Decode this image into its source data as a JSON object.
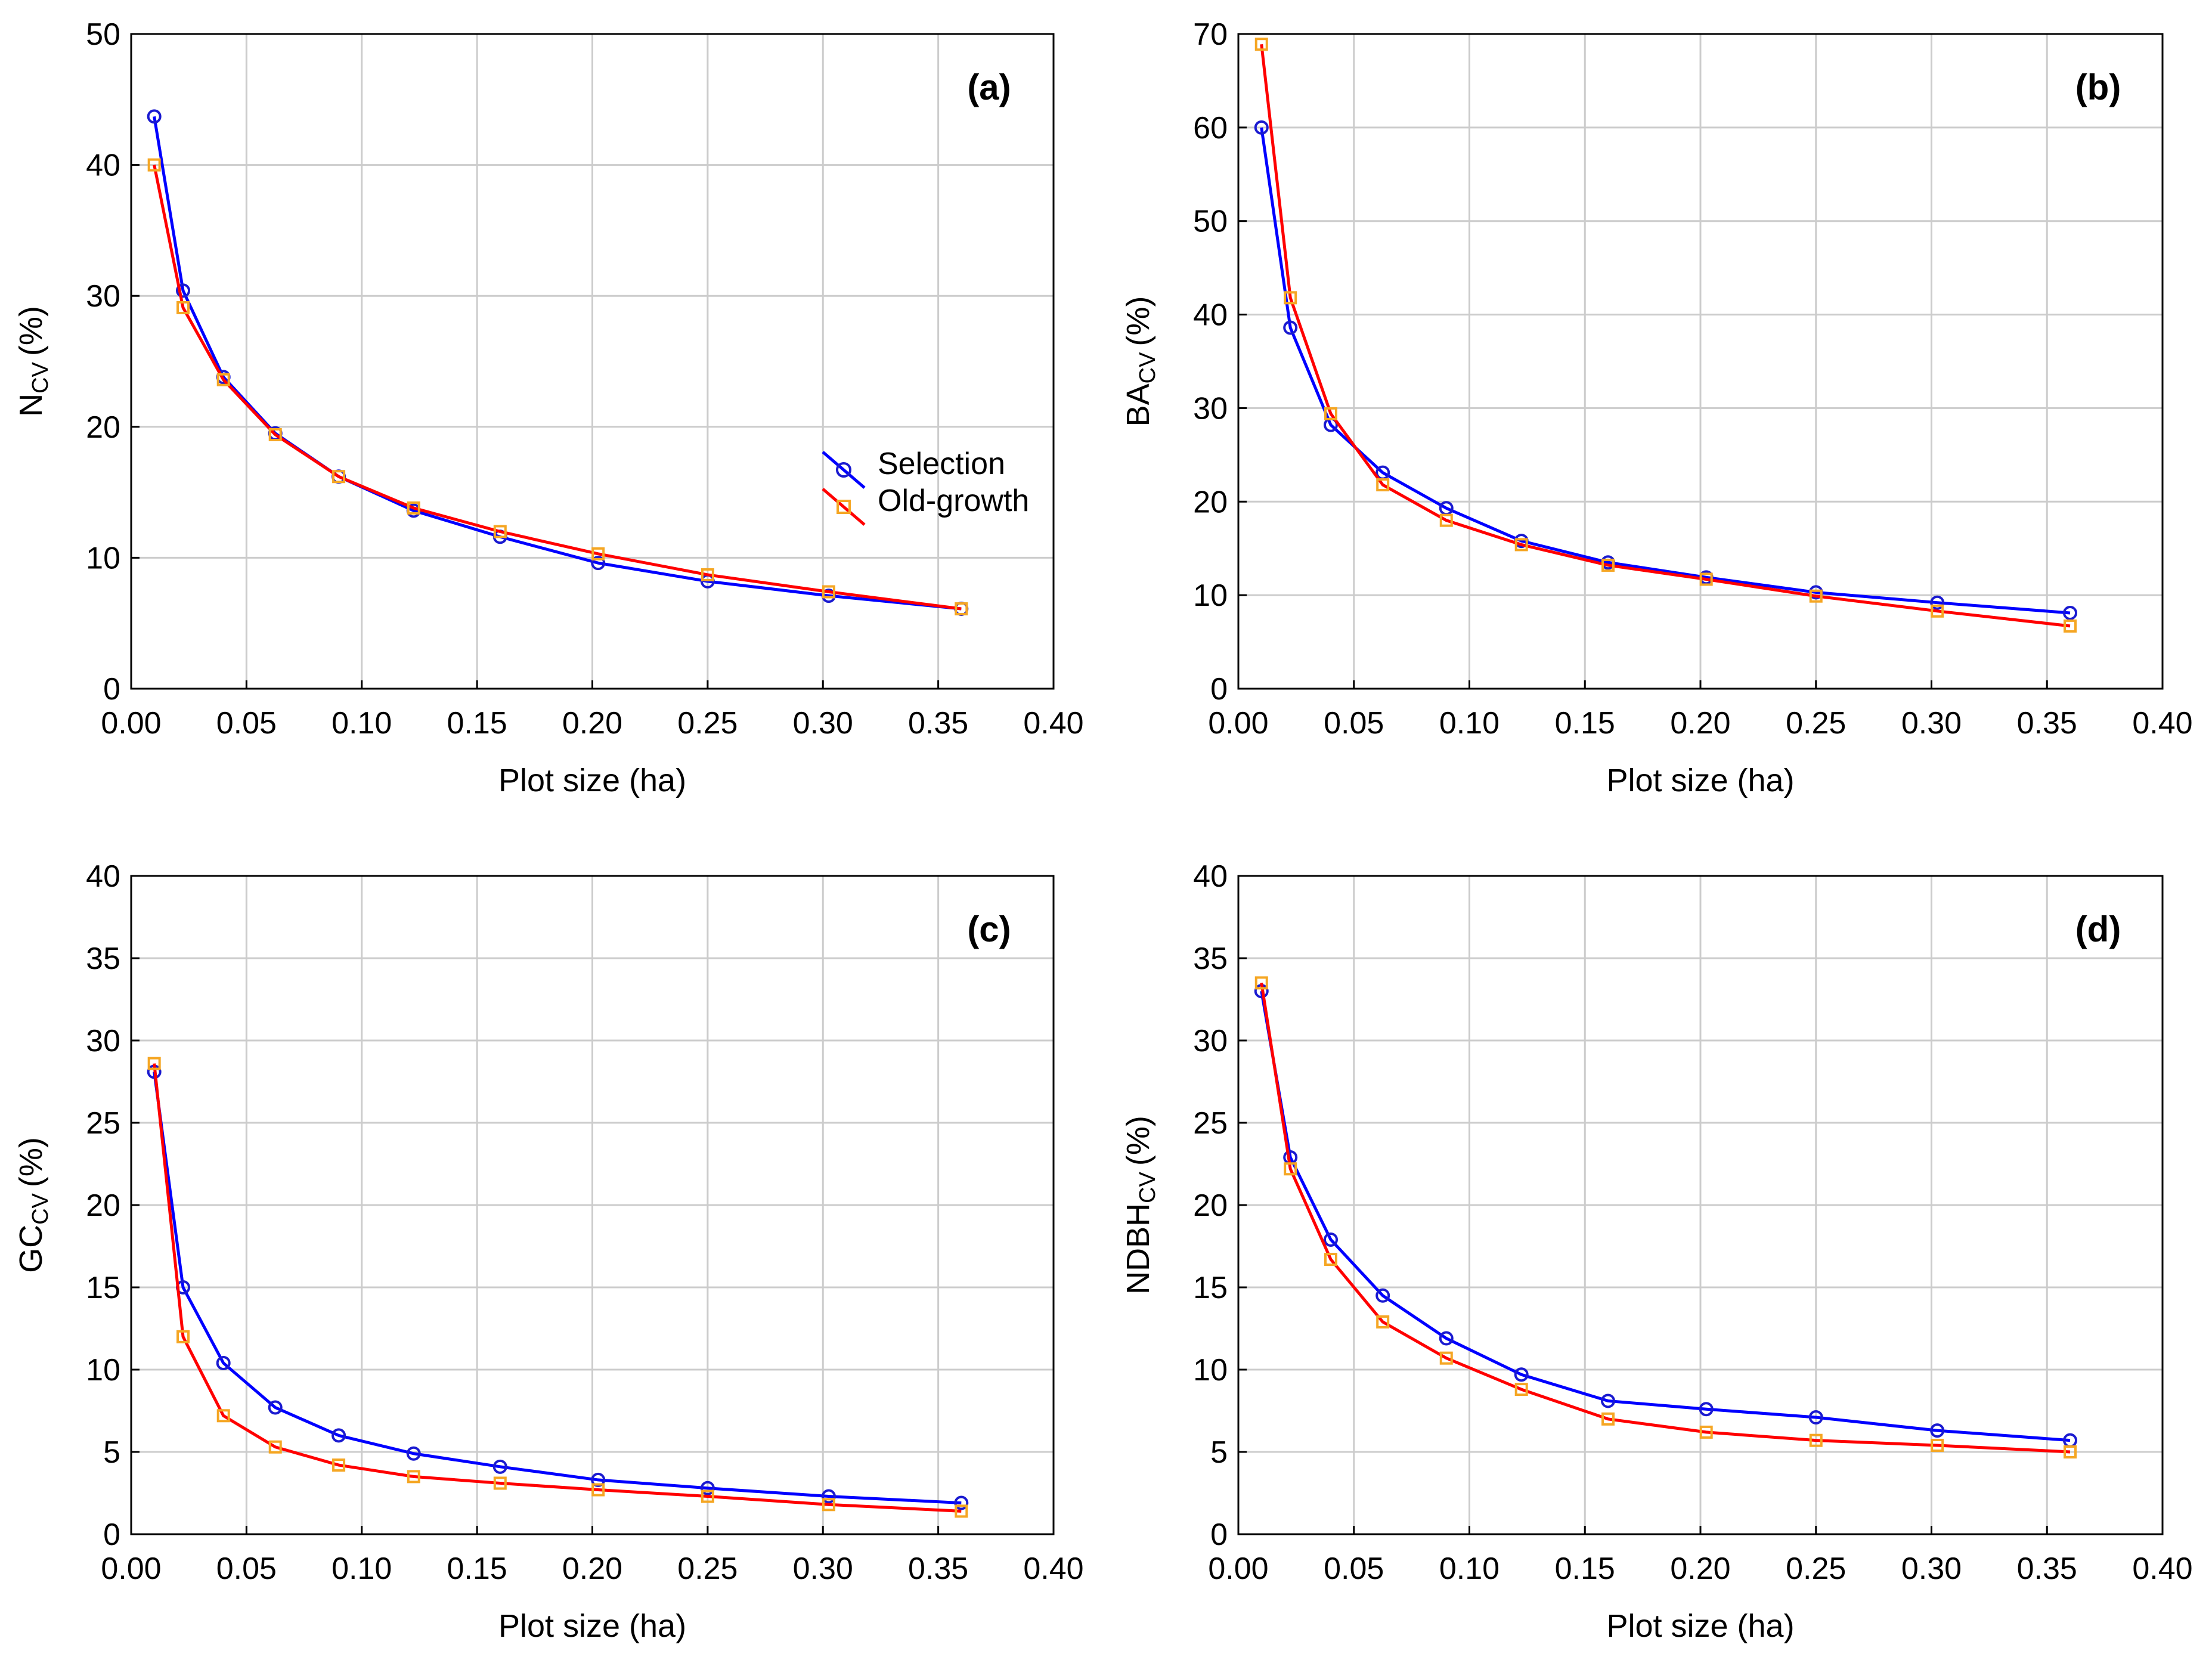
{
  "colors": {
    "selection_line": "#0000ff",
    "selection_marker": "#1a1ad0",
    "oldgrowth_line": "#ff0000",
    "oldgrowth_marker": "#f5a623",
    "grid": "#cccccc",
    "frame": "#000000"
  },
  "legend": {
    "selection": "Selection",
    "oldgrowth": "Old-growth"
  },
  "chart_data": [
    {
      "type": "line",
      "panel": "(a)",
      "xlabel": "Plot size (ha)",
      "ylabel_main": "N",
      "ylabel_sub": "CV",
      "ylabel_unit": "(%)",
      "xlim": [
        0,
        0.4
      ],
      "ylim": [
        0,
        50
      ],
      "xticks": [
        "0.00",
        "0.05",
        "0.10",
        "0.15",
        "0.20",
        "0.25",
        "0.30",
        "0.35",
        "0.40"
      ],
      "yticks": [
        "0",
        "10",
        "20",
        "30",
        "40",
        "50"
      ],
      "x": [
        0.01,
        0.0225,
        0.04,
        0.0625,
        0.09,
        0.1225,
        0.16,
        0.2025,
        0.25,
        0.3025,
        0.36
      ],
      "series": [
        {
          "name": "Selection",
          "values": [
            43.7,
            30.4,
            23.8,
            19.5,
            16.2,
            13.6,
            11.6,
            9.6,
            8.2,
            7.1,
            6.1
          ]
        },
        {
          "name": "Old-growth",
          "values": [
            40.0,
            29.1,
            23.6,
            19.4,
            16.2,
            13.8,
            12.0,
            10.3,
            8.7,
            7.4,
            6.1
          ]
        }
      ],
      "legend_position": "middle-right"
    },
    {
      "type": "line",
      "panel": "(b)",
      "xlabel": "Plot size (ha)",
      "ylabel_main": "BA",
      "ylabel_sub": "CV",
      "ylabel_unit": "(%)",
      "xlim": [
        0,
        0.4
      ],
      "ylim": [
        0,
        70
      ],
      "xticks": [
        "0.00",
        "0.05",
        "0.10",
        "0.15",
        "0.20",
        "0.25",
        "0.30",
        "0.35",
        "0.40"
      ],
      "yticks": [
        "0",
        "10",
        "20",
        "30",
        "40",
        "50",
        "60",
        "70"
      ],
      "x": [
        0.01,
        0.0225,
        0.04,
        0.0625,
        0.09,
        0.1225,
        0.16,
        0.2025,
        0.25,
        0.3025,
        0.36
      ],
      "series": [
        {
          "name": "Selection",
          "values": [
            60.0,
            38.6,
            28.2,
            23.1,
            19.3,
            15.8,
            13.5,
            11.9,
            10.3,
            9.2,
            8.1
          ]
        },
        {
          "name": "Old-growth",
          "values": [
            68.9,
            41.8,
            29.4,
            21.8,
            18.0,
            15.4,
            13.2,
            11.7,
            9.9,
            8.3,
            6.7
          ]
        }
      ]
    },
    {
      "type": "line",
      "panel": "(c)",
      "xlabel": "Plot size (ha)",
      "ylabel_main": "GC",
      "ylabel_sub": "CV",
      "ylabel_unit": "(%)",
      "xlim": [
        0,
        0.4
      ],
      "ylim": [
        0,
        40
      ],
      "xticks": [
        "0.00",
        "0.05",
        "0.10",
        "0.15",
        "0.20",
        "0.25",
        "0.30",
        "0.35",
        "0.40"
      ],
      "yticks": [
        "0",
        "5",
        "10",
        "15",
        "20",
        "25",
        "30",
        "35",
        "40"
      ],
      "x": [
        0.01,
        0.0225,
        0.04,
        0.0625,
        0.09,
        0.1225,
        0.16,
        0.2025,
        0.25,
        0.3025,
        0.36
      ],
      "series": [
        {
          "name": "Selection",
          "values": [
            28.1,
            15.0,
            10.4,
            7.7,
            6.0,
            4.9,
            4.1,
            3.3,
            2.8,
            2.3,
            1.9
          ]
        },
        {
          "name": "Old-growth",
          "values": [
            28.6,
            12.0,
            7.2,
            5.3,
            4.2,
            3.5,
            3.1,
            2.7,
            2.3,
            1.8,
            1.4
          ]
        }
      ]
    },
    {
      "type": "line",
      "panel": "(d)",
      "xlabel": "Plot size (ha)",
      "ylabel_main": "NDBH",
      "ylabel_sub": "CV",
      "ylabel_unit": "(%)",
      "xlim": [
        0,
        0.4
      ],
      "ylim": [
        0,
        40
      ],
      "xticks": [
        "0.00",
        "0.05",
        "0.10",
        "0.15",
        "0.20",
        "0.25",
        "0.30",
        "0.35",
        "0.40"
      ],
      "yticks": [
        "0",
        "5",
        "10",
        "15",
        "20",
        "25",
        "30",
        "35",
        "40"
      ],
      "x": [
        0.01,
        0.0225,
        0.04,
        0.0625,
        0.09,
        0.1225,
        0.16,
        0.2025,
        0.25,
        0.3025,
        0.36
      ],
      "series": [
        {
          "name": "Selection",
          "values": [
            33.0,
            22.9,
            17.9,
            14.5,
            11.9,
            9.7,
            8.1,
            7.6,
            7.1,
            6.3,
            5.7
          ]
        },
        {
          "name": "Old-growth",
          "values": [
            33.5,
            22.2,
            16.7,
            12.9,
            10.7,
            8.8,
            7.0,
            6.2,
            5.7,
            5.4,
            5.0
          ]
        }
      ]
    }
  ]
}
